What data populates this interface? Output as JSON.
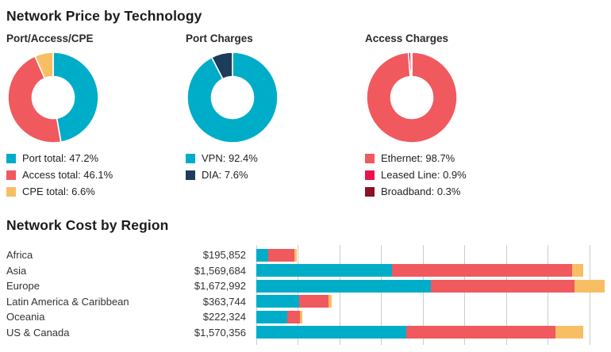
{
  "page": {
    "section1_title": "Network Price by Technology",
    "section2_title": "Network Cost by Region"
  },
  "colors": {
    "teal": "#00ADC8",
    "salmon": "#F0595E",
    "orange": "#F7BE64",
    "navy": "#1E3C5C",
    "crimson": "#E8134D",
    "maroon": "#8A1324",
    "gridline": "#CCCCCC",
    "title_text": "#1C1C1C",
    "body_text": "#333333"
  },
  "chart_data": [
    {
      "type": "pie",
      "subtype": "donut",
      "title": "Port/Access/CPE",
      "start_angle_deg": 0,
      "direction": "clockwise",
      "legend_position": "bottom-left",
      "slices": [
        {
          "label": "Port total",
          "pct": 47.2,
          "color": "#00ADC8"
        },
        {
          "label": "Access total",
          "pct": 46.1,
          "color": "#F0595E"
        },
        {
          "label": "CPE total",
          "pct": 6.6,
          "color": "#F7BE64"
        }
      ]
    },
    {
      "type": "pie",
      "subtype": "donut",
      "title": "Port Charges",
      "start_angle_deg": 0,
      "direction": "clockwise",
      "legend_position": "bottom-left",
      "slices": [
        {
          "label": "VPN",
          "pct": 92.4,
          "color": "#00ADC8"
        },
        {
          "label": "DIA",
          "pct": 7.6,
          "color": "#1E3C5C"
        }
      ]
    },
    {
      "type": "pie",
      "subtype": "donut",
      "title": "Access Charges",
      "start_angle_deg": 0,
      "direction": "clockwise",
      "legend_position": "bottom-left",
      "slices": [
        {
          "label": "Ethernet",
          "pct": 98.7,
          "color": "#F0595E"
        },
        {
          "label": "Leased Line",
          "pct": 0.9,
          "color": "#E8134D"
        },
        {
          "label": "Broadband",
          "pct": 0.3,
          "color": "#8A1324"
        }
      ]
    },
    {
      "type": "bar",
      "title": "Network Cost by Region",
      "orientation": "horizontal",
      "stacked": true,
      "grid": true,
      "xlim": [
        0,
        1688000
      ],
      "gridline_step": 200000,
      "categories": [
        "Africa",
        "Asia",
        "Europe",
        "Latin America & Caribbean",
        "Oceania",
        "US & Canada"
      ],
      "value_labels": [
        "$195,852",
        "$1,569,684",
        "$1,672,992",
        "$363,744",
        "$222,324",
        "$1,570,356"
      ],
      "totals": [
        195852,
        1569684,
        1672992,
        363744,
        222324,
        1570356
      ],
      "series": [
        {
          "name": "Port",
          "color": "#00ADC8",
          "values": [
            56800,
            652500,
            839800,
            206200,
            150200,
            719200
          ]
        },
        {
          "name": "Access",
          "color": "#F0595E",
          "values": [
            127500,
            862400,
            687600,
            140800,
            58200,
            719200
          ]
        },
        {
          "name": "CPE",
          "color": "#F7BE64",
          "values": [
            11552,
            54784,
            145592,
            16744,
            13924,
            131956
          ]
        }
      ]
    }
  ]
}
